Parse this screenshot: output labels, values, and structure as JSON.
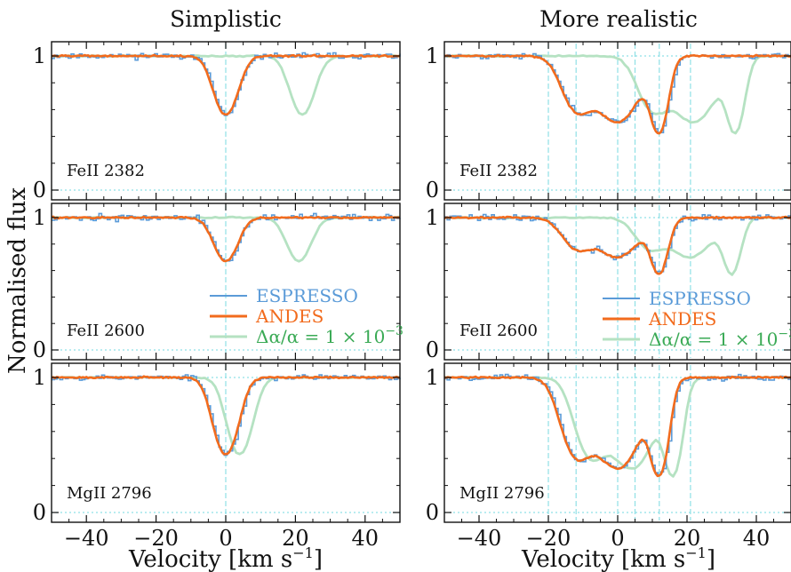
{
  "figure": {
    "ylabel": "Normalised flux",
    "xlabel_main": "Velocity [km s",
    "xlabel_sup": "−1",
    "xlabel_close": "]",
    "columns": [
      "Simplistic",
      "More realistic"
    ],
    "colors": {
      "espresso": "#5b9bd8",
      "andes": "#f26b1d",
      "shifted": "#b5e2c2",
      "guide": "#8fe0e6",
      "legend_shifted_text": "#3aaa55"
    }
  },
  "legend": {
    "espresso": "ESPRESSO",
    "andes": "ANDES",
    "shifted_prefix": "Δα/α = 1 × 10",
    "shifted_exp": "−3"
  },
  "chart_data": {
    "type": "line",
    "x_label": "Velocity [km s−1]",
    "y_label": "Normalised flux",
    "xlim": [
      -50,
      50
    ],
    "ylim": [
      0,
      1
    ],
    "x_ticks": [
      -40,
      -20,
      0,
      20,
      40
    ],
    "y_ticks": [
      0,
      1
    ],
    "series_names": [
      "ESPRESSO",
      "ANDES",
      "Δα/α = 1 × 10−3"
    ],
    "panels": [
      {
        "column": "Simplistic",
        "line": "FeII 2382",
        "components": [
          {
            "v": 0,
            "depth": 0.44,
            "width": 4.5
          }
        ],
        "min_flux": 0.56,
        "shifted_offset": 22,
        "guides": [
          0
        ],
        "espresso_noise": 0.025,
        "seed": 11
      },
      {
        "column": "More realistic",
        "line": "FeII 2382",
        "components": [
          {
            "v": -12,
            "depth": 0.28,
            "width": 5.5
          },
          {
            "v": 0,
            "depth": 0.36,
            "width": 8
          },
          {
            "v": 12,
            "depth": 0.4,
            "width": 3.2
          }
        ],
        "min_flux": 0.42,
        "shifted_offset": 22,
        "guides": [
          -20,
          -12,
          0,
          5,
          12,
          21
        ],
        "espresso_noise": 0.025,
        "seed": 23
      },
      {
        "column": "Simplistic",
        "line": "FeII 2600",
        "components": [
          {
            "v": 0,
            "depth": 0.33,
            "width": 4.5
          }
        ],
        "min_flux": 0.67,
        "shifted_offset": 21,
        "guides": [
          0
        ],
        "espresso_noise": 0.03,
        "seed": 37
      },
      {
        "column": "More realistic",
        "line": "FeII 2600",
        "components": [
          {
            "v": -12,
            "depth": 0.16,
            "width": 5.5
          },
          {
            "v": 0,
            "depth": 0.22,
            "width": 8
          },
          {
            "v": 12,
            "depth": 0.3,
            "width": 3.2
          }
        ],
        "min_flux": 0.57,
        "shifted_offset": 21,
        "guides": [
          -20,
          -12,
          0,
          5,
          12,
          21
        ],
        "espresso_noise": 0.03,
        "seed": 41
      },
      {
        "column": "Simplistic",
        "line": "MgII 2796",
        "components": [
          {
            "v": 0,
            "depth": 0.57,
            "width": 4.5
          }
        ],
        "min_flux": 0.43,
        "shifted_offset": 4,
        "guides": [
          0
        ],
        "espresso_noise": 0.025,
        "seed": 53
      },
      {
        "column": "More realistic",
        "line": "MgII 2796",
        "components": [
          {
            "v": -12,
            "depth": 0.48,
            "width": 5.5
          },
          {
            "v": 0,
            "depth": 0.58,
            "width": 8
          },
          {
            "v": 12,
            "depth": 0.6,
            "width": 3.2
          }
        ],
        "min_flux": 0.27,
        "shifted_offset": 4,
        "guides": [
          -20,
          -12,
          0,
          5,
          12,
          21
        ],
        "espresso_noise": 0.025,
        "seed": 67
      }
    ]
  }
}
